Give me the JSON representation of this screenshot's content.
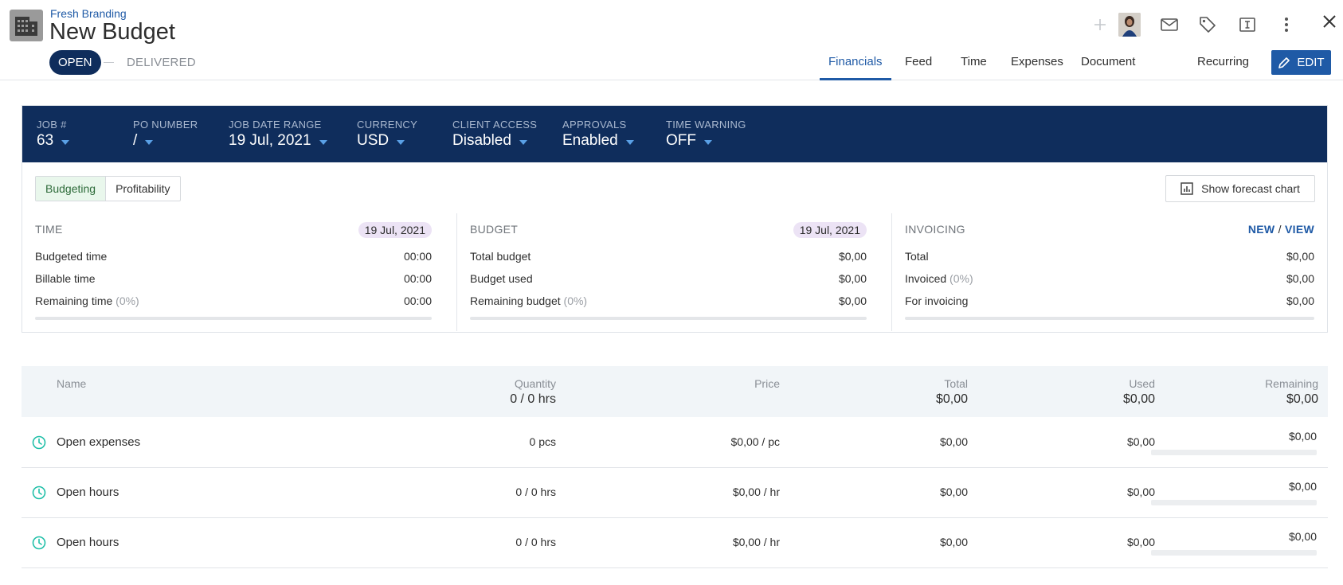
{
  "header": {
    "client": "Fresh Branding",
    "title": "New Budget",
    "status_open": "OPEN",
    "status_delivered": "DELIVERED",
    "tabs": [
      {
        "label": "Financials",
        "active": true
      },
      {
        "label": "Feed"
      },
      {
        "label": "Time"
      },
      {
        "label": "Expenses"
      },
      {
        "label": "Document"
      },
      {
        "label": "Recurring"
      }
    ],
    "edit_label": "EDIT",
    "icons": [
      "plus-icon",
      "avatar",
      "mail-icon",
      "tag-icon",
      "text-box-icon",
      "more-vertical-icon",
      "close-icon"
    ]
  },
  "job_bar": {
    "fields": [
      {
        "label": "JOB #",
        "value": "63"
      },
      {
        "label": "PO NUMBER",
        "value": "/"
      },
      {
        "label": "JOB DATE RANGE",
        "value": "19 Jul, 2021"
      },
      {
        "label": "CURRENCY",
        "value": "USD"
      },
      {
        "label": "CLIENT ACCESS",
        "value": "Disabled"
      },
      {
        "label": "APPROVALS",
        "value": "Enabled"
      },
      {
        "label": "TIME WARNING",
        "value": "OFF"
      }
    ]
  },
  "view_toggle": {
    "budgeting": "Budgeting",
    "profitability": "Profitability",
    "active": "Budgeting"
  },
  "forecast_button": "Show forecast chart",
  "summary": {
    "time": {
      "title": "TIME",
      "date": "19 Jul, 2021",
      "rows": [
        {
          "label": "Budgeted time",
          "value": "00:00"
        },
        {
          "label": "Billable time",
          "value": "00:00"
        },
        {
          "label": "Remaining time",
          "pct": "(0%)",
          "value": "00:00"
        }
      ],
      "progress": 0
    },
    "budget": {
      "title": "BUDGET",
      "date": "19 Jul, 2021",
      "rows": [
        {
          "label": "Total budget",
          "value": "$0,00"
        },
        {
          "label": "Budget used",
          "value": "$0,00"
        },
        {
          "label": "Remaining budget",
          "pct": "(0%)",
          "value": "$0,00"
        }
      ],
      "progress": 0
    },
    "invoicing": {
      "title": "INVOICING",
      "new_label": "NEW",
      "slash": "/",
      "view_label": "VIEW",
      "rows": [
        {
          "label": "Total",
          "value": "$0,00"
        },
        {
          "label": "Invoiced",
          "pct": "(0%)",
          "value": "$0,00"
        },
        {
          "label": "For invoicing",
          "value": "$0,00"
        }
      ],
      "progress": 0
    }
  },
  "table": {
    "headers": {
      "name": "Name",
      "quantity": "Quantity",
      "quantity_total": "0 / 0 hrs",
      "price": "Price",
      "total": "Total",
      "total_sum": "$0,00",
      "used": "Used",
      "used_sum": "$0,00",
      "remaining": "Remaining",
      "remaining_sum": "$0,00"
    },
    "rows": [
      {
        "name": "Open expenses",
        "quantity": "0 pcs",
        "price": "$0,00 / pc",
        "total": "$0,00",
        "used": "$0,00",
        "remaining": "$0,00"
      },
      {
        "name": "Open hours",
        "quantity": "0 / 0 hrs",
        "price": "$0,00 / hr",
        "total": "$0,00",
        "used": "$0,00",
        "remaining": "$0,00"
      },
      {
        "name": "Open hours",
        "quantity": "0 / 0 hrs",
        "price": "$0,00 / hr",
        "total": "$0,00",
        "used": "$0,00",
        "remaining": "$0,00"
      }
    ]
  },
  "colors": {
    "brand_navy": "#0f2d5c",
    "accent_blue": "#1f5aa6",
    "clock_teal": "#1fbfa8"
  }
}
